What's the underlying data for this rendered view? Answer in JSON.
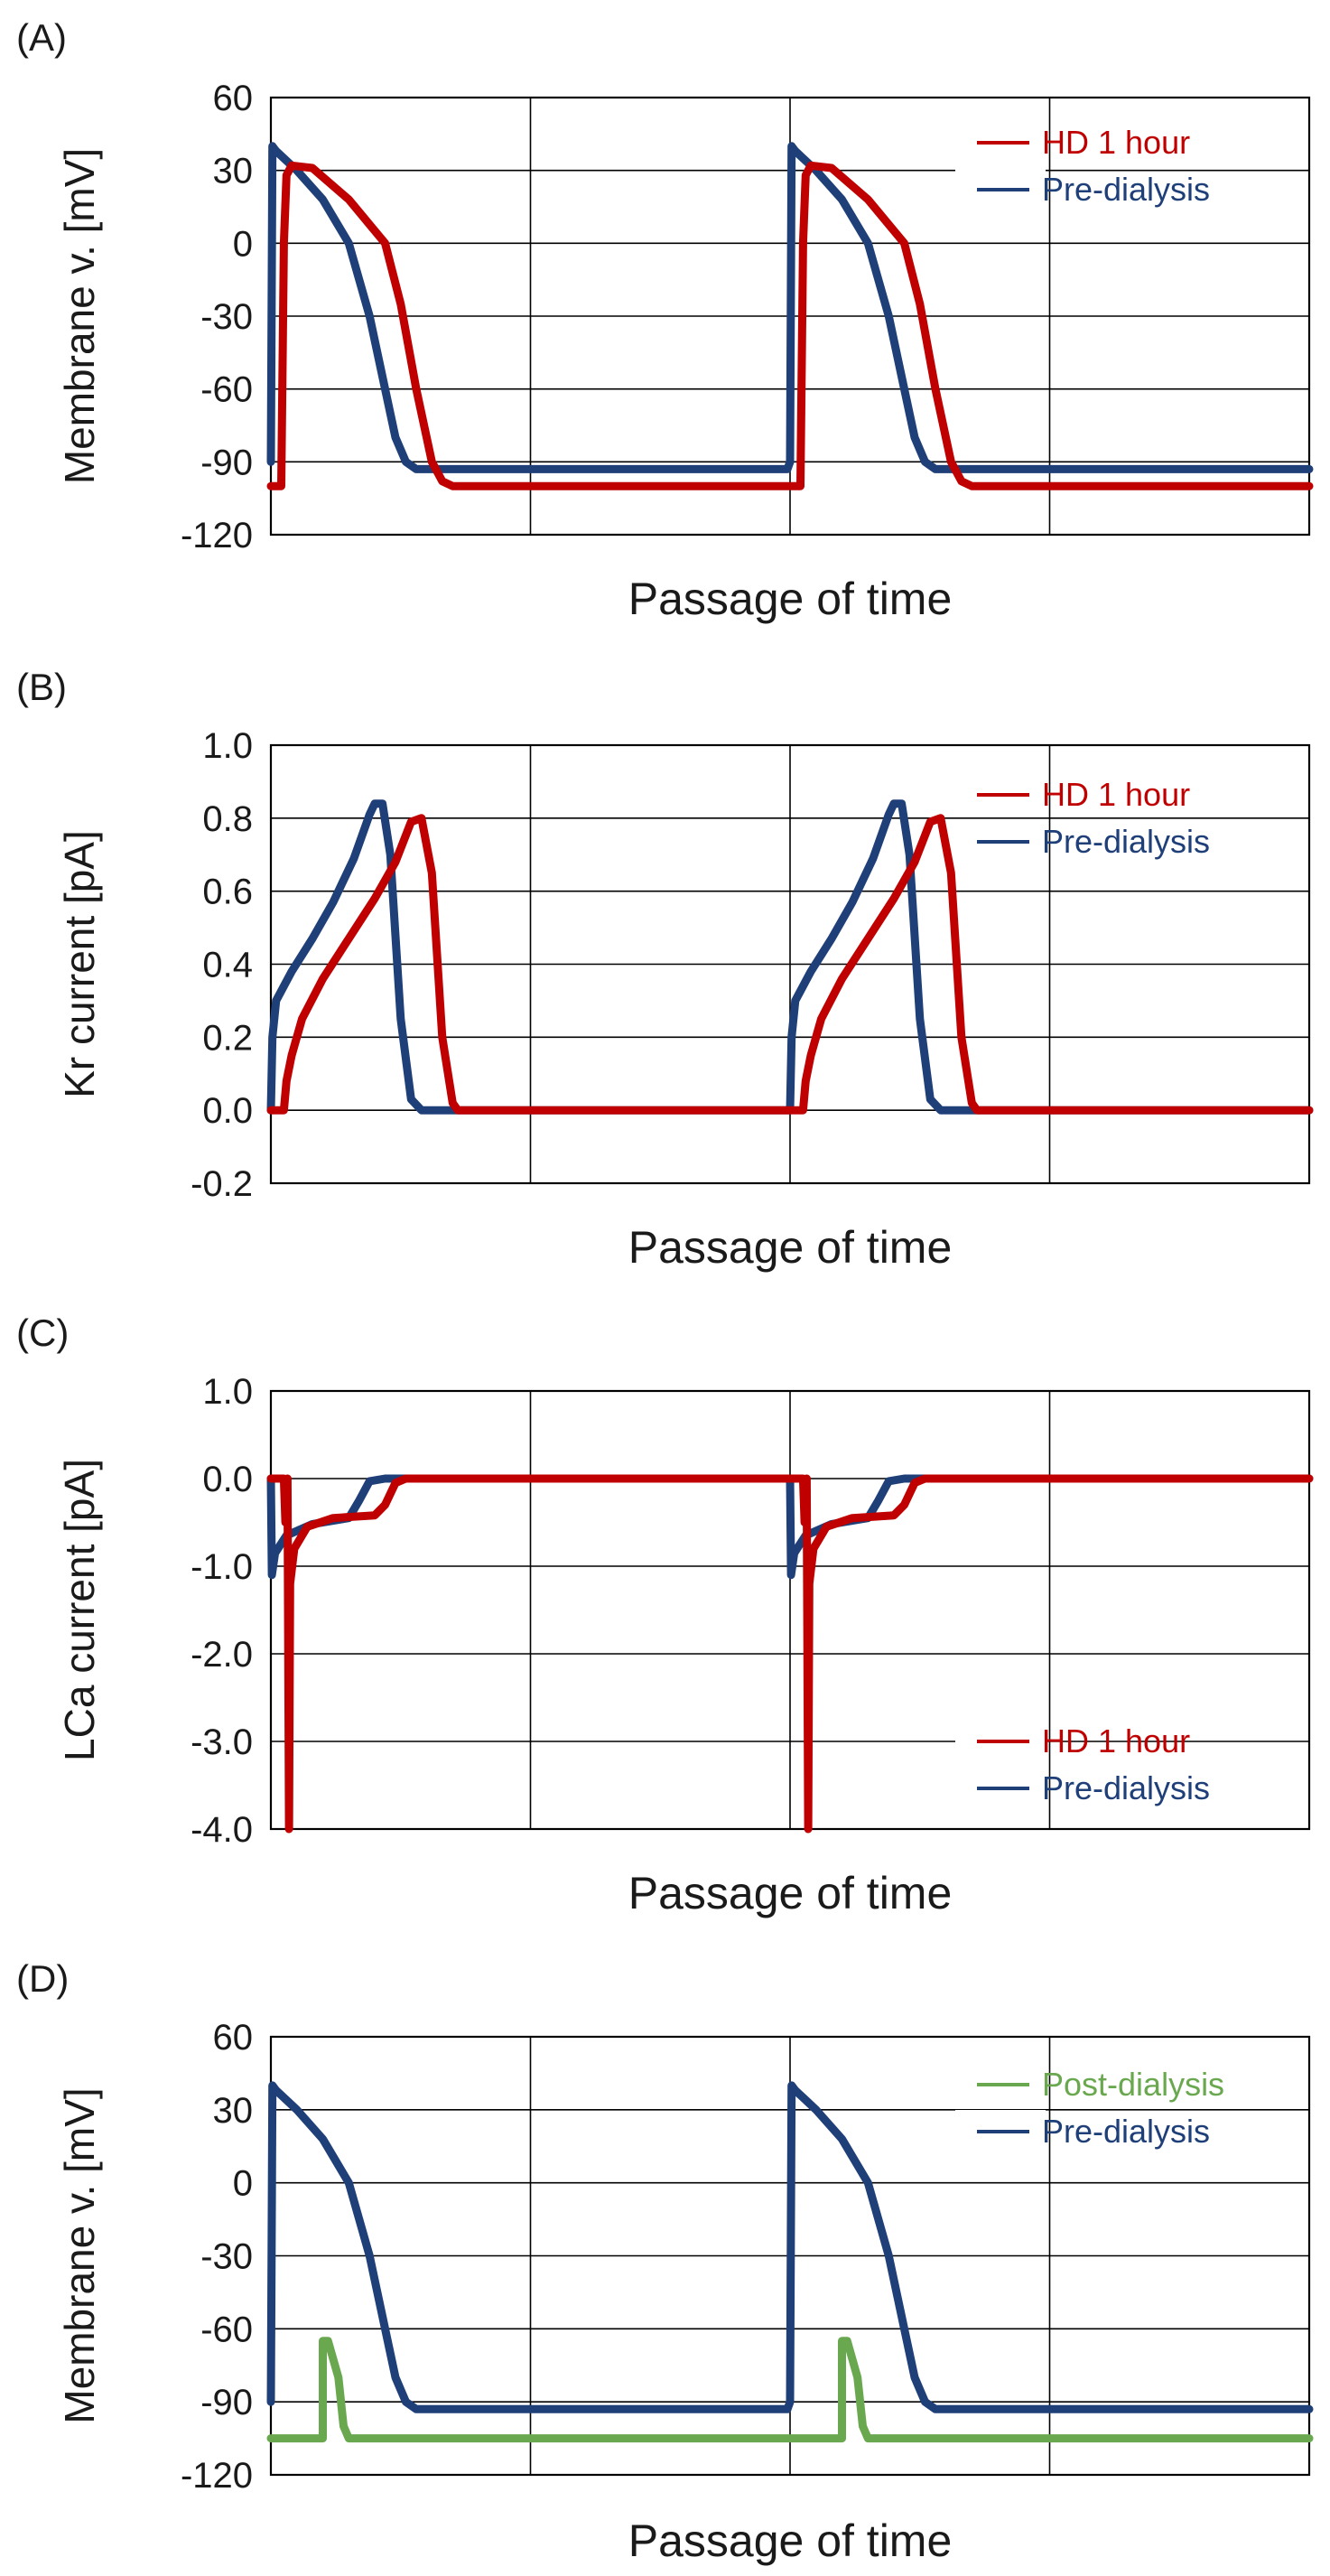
{
  "figure": {
    "panels": [
      {
        "label": "(A)",
        "ylabel": "Membrane v. [mV]",
        "xlabel": "Passage of time",
        "yticks": [
          "60",
          "30",
          "0",
          "-30",
          "-60",
          "-90",
          "-120"
        ],
        "ylim": [
          -120,
          60
        ],
        "legend": [
          {
            "name": "HD 1 hour",
            "color": "#c00000"
          },
          {
            "name": "Pre-dialysis",
            "color": "#1f3f78"
          }
        ]
      },
      {
        "label": "(B)",
        "ylabel": "Kr current [pA]",
        "xlabel": "Passage of time",
        "yticks": [
          "1.0",
          "0.8",
          "0.6",
          "0.4",
          "0.2",
          "0.0",
          "-0.2"
        ],
        "ylim": [
          -0.2,
          1.0
        ],
        "legend": [
          {
            "name": "HD 1 hour",
            "color": "#c00000"
          },
          {
            "name": "Pre-dialysis",
            "color": "#1f3f78"
          }
        ]
      },
      {
        "label": "(C)",
        "ylabel": "LCa current [pA]",
        "xlabel": "Passage of time",
        "yticks": [
          "1.0",
          "0.0",
          "-1.0",
          "-2.0",
          "-3.0",
          "-4.0"
        ],
        "ylim": [
          -4.0,
          1.0
        ],
        "legend": [
          {
            "name": "HD 1 hour",
            "color": "#c00000"
          },
          {
            "name": "Pre-dialysis",
            "color": "#1f3f78"
          }
        ]
      },
      {
        "label": "(D)",
        "ylabel": "Membrane v. [mV]",
        "xlabel": "Passage of time",
        "yticks": [
          "60",
          "30",
          "0",
          "-30",
          "-60",
          "-90",
          "-120"
        ],
        "ylim": [
          -120,
          60
        ],
        "legend": [
          {
            "name": "Post-dialysis",
            "color": "#6aa84f"
          },
          {
            "name": "Pre-dialysis",
            "color": "#1f3f78"
          }
        ]
      }
    ]
  },
  "chart_data": [
    {
      "type": "line",
      "title": "",
      "xlabel": "Passage of time",
      "ylabel": "Membrane v. [mV]",
      "xlim": [
        0,
        2
      ],
      "ylim": [
        -120,
        60
      ],
      "grid": true,
      "legend_position": "top-right",
      "series": [
        {
          "name": "HD 1 hour",
          "color": "#c00000",
          "x": [
            0.0,
            0.02,
            0.025,
            0.03,
            0.04,
            0.08,
            0.15,
            0.22,
            0.25,
            0.28,
            0.31,
            0.33,
            0.35,
            0.38,
            1.0,
            1.0,
            1.0,
            1.02,
            1.025,
            1.03,
            1.04,
            1.08,
            1.15,
            1.22,
            1.25,
            1.28,
            1.31,
            1.33,
            1.35,
            1.38,
            2.0
          ],
          "y": [
            -100,
            -100,
            0,
            28,
            32,
            31,
            18,
            0,
            -25,
            -60,
            -90,
            -98,
            -100,
            -100,
            -100,
            -100,
            -100,
            -100,
            0,
            28,
            32,
            31,
            18,
            0,
            -25,
            -60,
            -90,
            -98,
            -100,
            -100,
            -100
          ]
        },
        {
          "name": "Pre-dialysis",
          "color": "#1f3f78",
          "x": [
            0.0,
            0.003,
            0.01,
            0.05,
            0.1,
            0.15,
            0.19,
            0.22,
            0.24,
            0.26,
            0.28,
            0.3,
            0.995,
            1.0,
            1.003,
            1.01,
            1.05,
            1.1,
            1.15,
            1.19,
            1.22,
            1.24,
            1.26,
            1.28,
            1.3,
            1.995,
            2.0
          ],
          "y": [
            -90,
            40,
            38,
            30,
            18,
            0,
            -30,
            -60,
            -80,
            -90,
            -93,
            -93,
            -93,
            -90,
            40,
            38,
            30,
            18,
            0,
            -30,
            -60,
            -80,
            -90,
            -93,
            -93,
            -93,
            -93
          ]
        }
      ]
    },
    {
      "type": "line",
      "title": "",
      "xlabel": "Passage of time",
      "ylabel": "Kr current [pA]",
      "xlim": [
        0,
        2
      ],
      "ylim": [
        -0.2,
        1.0
      ],
      "grid": true,
      "legend_position": "top-right",
      "series": [
        {
          "name": "HD 1 hour",
          "color": "#c00000",
          "x": [
            0.0,
            0.025,
            0.03,
            0.04,
            0.06,
            0.1,
            0.15,
            0.2,
            0.24,
            0.27,
            0.29,
            0.31,
            0.33,
            0.35,
            0.36,
            1.0,
            1.025,
            1.03,
            1.04,
            1.06,
            1.1,
            1.15,
            1.2,
            1.24,
            1.27,
            1.29,
            1.31,
            1.33,
            1.35,
            1.36,
            2.0
          ],
          "y": [
            0.0,
            0.0,
            0.08,
            0.15,
            0.25,
            0.36,
            0.47,
            0.58,
            0.68,
            0.79,
            0.8,
            0.65,
            0.2,
            0.02,
            0.0,
            0.0,
            0.0,
            0.08,
            0.15,
            0.25,
            0.36,
            0.47,
            0.58,
            0.68,
            0.79,
            0.8,
            0.65,
            0.2,
            0.02,
            0.0,
            0.0
          ]
        },
        {
          "name": "Pre-dialysis",
          "color": "#1f3f78",
          "x": [
            0.0,
            0.003,
            0.01,
            0.04,
            0.08,
            0.12,
            0.16,
            0.19,
            0.2,
            0.215,
            0.23,
            0.25,
            0.27,
            0.29,
            1.0,
            1.003,
            1.01,
            1.04,
            1.08,
            1.12,
            1.16,
            1.19,
            1.2,
            1.215,
            1.23,
            1.25,
            1.27,
            1.29,
            2.0
          ],
          "y": [
            0.0,
            0.2,
            0.3,
            0.38,
            0.47,
            0.57,
            0.69,
            0.81,
            0.84,
            0.84,
            0.7,
            0.25,
            0.03,
            0.0,
            0.0,
            0.2,
            0.3,
            0.38,
            0.47,
            0.57,
            0.69,
            0.81,
            0.84,
            0.84,
            0.7,
            0.25,
            0.03,
            0.0,
            0.0
          ]
        }
      ]
    },
    {
      "type": "line",
      "title": "",
      "xlabel": "Passage of time",
      "ylabel": "LCa current [pA]",
      "xlim": [
        0,
        2
      ],
      "ylim": [
        -4.0,
        1.0
      ],
      "grid": true,
      "legend_position": "bottom-right",
      "series": [
        {
          "name": "HD 1 hour",
          "color": "#c00000",
          "x": [
            0.0,
            0.025,
            0.028,
            0.032,
            0.035,
            0.037,
            0.045,
            0.07,
            0.12,
            0.2,
            0.22,
            0.24,
            0.26,
            1.0,
            1.025,
            1.028,
            1.032,
            1.035,
            1.037,
            1.045,
            1.07,
            1.12,
            1.2,
            1.22,
            1.24,
            1.26,
            2.0
          ],
          "y": [
            0.0,
            0.0,
            -0.5,
            0.0,
            -4.0,
            -1.2,
            -0.8,
            -0.55,
            -0.45,
            -0.42,
            -0.3,
            -0.05,
            0.0,
            0.0,
            0.0,
            -0.5,
            0.0,
            -4.0,
            -1.2,
            -0.8,
            -0.55,
            -0.45,
            -0.42,
            -0.3,
            -0.05,
            0.0,
            0.0
          ]
        },
        {
          "name": "Pre-dialysis",
          "color": "#1f3f78",
          "x": [
            0.0,
            0.002,
            0.008,
            0.03,
            0.08,
            0.15,
            0.17,
            0.19,
            0.22,
            1.0,
            1.002,
            1.008,
            1.03,
            1.08,
            1.15,
            1.17,
            1.19,
            1.22,
            2.0
          ],
          "y": [
            0.0,
            -1.1,
            -0.85,
            -0.65,
            -0.52,
            -0.45,
            -0.25,
            -0.03,
            0.0,
            0.0,
            -1.1,
            -0.85,
            -0.65,
            -0.52,
            -0.45,
            -0.25,
            -0.03,
            0.0,
            0.0
          ]
        }
      ]
    },
    {
      "type": "line",
      "title": "",
      "xlabel": "Passage of time",
      "ylabel": "Membrane v. [mV]",
      "xlim": [
        0,
        2
      ],
      "ylim": [
        -120,
        60
      ],
      "grid": true,
      "legend_position": "top-right",
      "series": [
        {
          "name": "Post-dialysis",
          "color": "#6aa84f",
          "x": [
            0.0,
            0.1,
            0.1,
            0.11,
            0.13,
            0.14,
            0.15,
            0.16,
            1.1,
            1.1,
            1.11,
            1.13,
            1.14,
            1.15,
            1.16,
            2.0
          ],
          "y": [
            -105,
            -105,
            -65,
            -65,
            -80,
            -100,
            -105,
            -105,
            -105,
            -65,
            -65,
            -80,
            -100,
            -105,
            -105,
            -105
          ]
        },
        {
          "name": "Pre-dialysis",
          "color": "#1f3f78",
          "x": [
            0.0,
            0.003,
            0.01,
            0.05,
            0.1,
            0.15,
            0.19,
            0.22,
            0.24,
            0.26,
            0.28,
            0.3,
            0.995,
            1.0,
            1.003,
            1.01,
            1.05,
            1.1,
            1.15,
            1.19,
            1.22,
            1.24,
            1.26,
            1.28,
            1.3,
            1.995,
            2.0
          ],
          "y": [
            -90,
            40,
            38,
            30,
            18,
            0,
            -30,
            -60,
            -80,
            -90,
            -93,
            -93,
            -93,
            -90,
            40,
            38,
            30,
            18,
            0,
            -30,
            -60,
            -80,
            -90,
            -93,
            -93,
            -93,
            -93
          ]
        }
      ]
    }
  ]
}
